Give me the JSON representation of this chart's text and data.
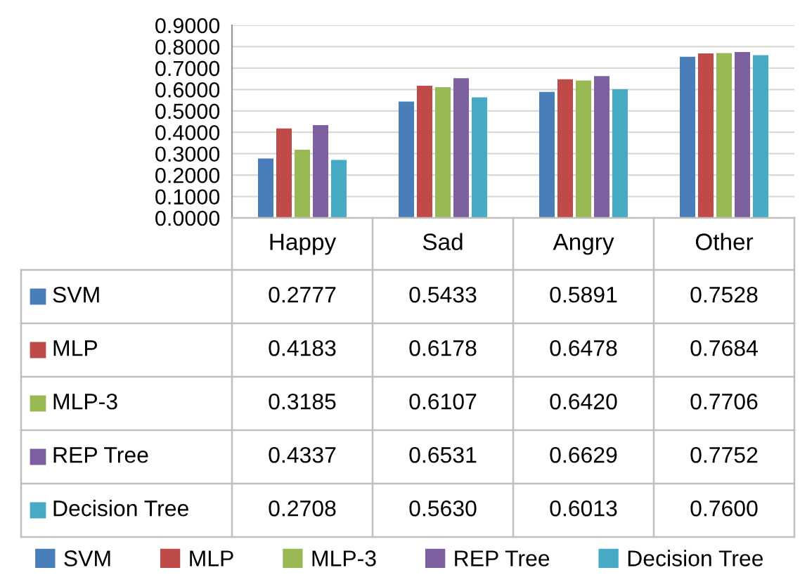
{
  "chart_data": {
    "type": "bar",
    "categories": [
      "Happy",
      "Sad",
      "Angry",
      "Other"
    ],
    "series": [
      {
        "name": "SVM",
        "color": "#4a7ebb",
        "values": [
          0.2777,
          0.5433,
          0.5891,
          0.7528
        ],
        "value_labels": [
          "0.2777",
          "0.5433",
          "0.5891",
          "0.7528"
        ]
      },
      {
        "name": "MLP",
        "color": "#be4b48",
        "values": [
          0.4183,
          0.6178,
          0.6478,
          0.7684
        ],
        "value_labels": [
          "0.4183",
          "0.6178",
          "0.6478",
          "0.7684"
        ]
      },
      {
        "name": "MLP-3",
        "color": "#98b954",
        "values": [
          0.3185,
          0.6107,
          0.642,
          0.7706
        ],
        "value_labels": [
          "0.3185",
          "0.6107",
          "0.6420",
          "0.7706"
        ]
      },
      {
        "name": "REP Tree",
        "color": "#7d60a0",
        "values": [
          0.4337,
          0.6531,
          0.6629,
          0.7752
        ],
        "value_labels": [
          "0.4337",
          "0.6531",
          "0.6629",
          "0.7752"
        ]
      },
      {
        "name": "Decision Tree",
        "color": "#46aac5",
        "values": [
          0.2708,
          0.563,
          0.6013,
          0.76
        ],
        "value_labels": [
          "0.2708",
          "0.5630",
          "0.6013",
          "0.7600"
        ]
      }
    ],
    "ylim": [
      0,
      0.9
    ],
    "yticks": [
      {
        "value": 0,
        "label": "0.0000"
      },
      {
        "value": 0.1,
        "label": "0.1000"
      },
      {
        "value": 0.2,
        "label": "0.2000"
      },
      {
        "value": 0.3,
        "label": "0.3000"
      },
      {
        "value": 0.4,
        "label": "0.4000"
      },
      {
        "value": 0.5,
        "label": "0.5000"
      },
      {
        "value": 0.6,
        "label": "0.6000"
      },
      {
        "value": 0.7,
        "label": "0.7000"
      },
      {
        "value": 0.8,
        "label": "0.8000"
      },
      {
        "value": 0.9,
        "label": "0.9000"
      }
    ],
    "grid": "y",
    "legend": "bottom"
  }
}
